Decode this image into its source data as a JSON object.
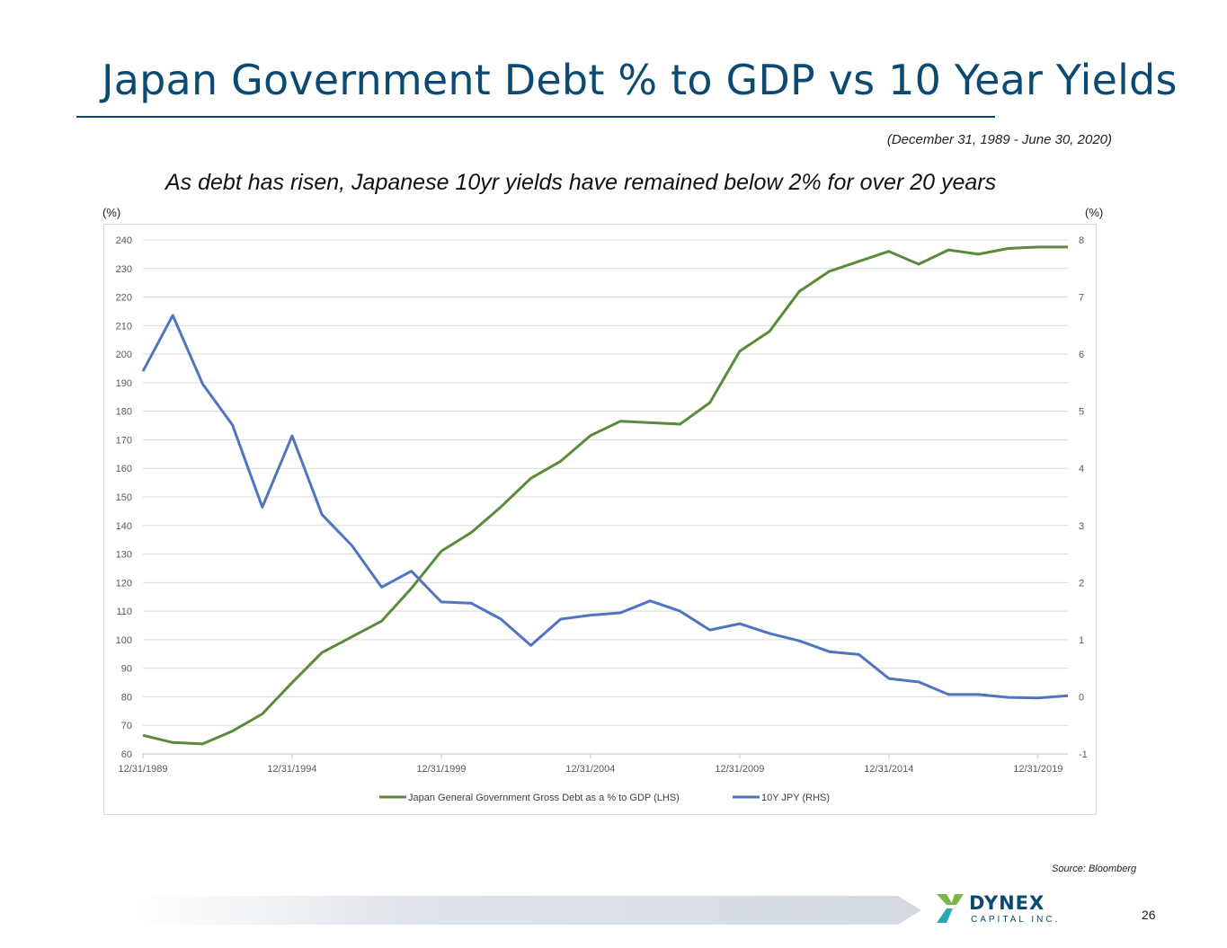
{
  "slide": {
    "title": "Japan Government Debt % to GDP vs 10 Year Yields",
    "date_range": "(December 31, 1989 - June 30, 2020)",
    "subtitle": "As debt has risen, Japanese 10yr yields have remained below 2% for over 20 years",
    "unit_left": "(%)",
    "unit_right": "(%)",
    "source": "Source: Bloomberg",
    "page_number": "26",
    "logo_word": "DYNEX",
    "logo_sub": "CAPITAL INC."
  },
  "colors": {
    "title": "#0c4a73",
    "debt_series": "#5a8a3a",
    "yield_series": "#4f74c0",
    "gridline": "#d9d9d9",
    "logo_green": "#7ab648",
    "logo_teal": "#2aa7b7"
  },
  "chart_data": {
    "type": "line",
    "x": [
      "1989",
      "1990",
      "1991",
      "1992",
      "1993",
      "1994",
      "1995",
      "1996",
      "1997",
      "1998",
      "1999",
      "2000",
      "2001",
      "2002",
      "2003",
      "2004",
      "2005",
      "2006",
      "2007",
      "2008",
      "2009",
      "2010",
      "2011",
      "2012",
      "2013",
      "2014",
      "2015",
      "2016",
      "2017",
      "2018",
      "2019",
      "2020"
    ],
    "x_tick_labels": [
      "12/31/1989",
      "12/31/1994",
      "12/31/1999",
      "12/31/2004",
      "12/31/2009",
      "12/31/2014",
      "12/31/2019"
    ],
    "y_left": {
      "min": 60,
      "max": 240,
      "step": 10
    },
    "y_right": {
      "min": -1,
      "max": 8,
      "step": 1
    },
    "series": [
      {
        "name": "Japan General Government Gross Debt as a % to GDP (LHS)",
        "axis": "left",
        "values": [
          66.5,
          64,
          63.5,
          68,
          74,
          85,
          95.5,
          101,
          106.5,
          118,
          131,
          137.5,
          146.5,
          156.5,
          162.5,
          171.5,
          176.5,
          176,
          175.5,
          183,
          201,
          208,
          222,
          229,
          232.5,
          236,
          231.5,
          236.5,
          235,
          237,
          237.5,
          237.5
        ]
      },
      {
        "name": "10Y JPY (RHS)",
        "axis": "right",
        "values": [
          5.7,
          6.68,
          5.48,
          4.76,
          3.32,
          4.57,
          3.19,
          2.65,
          1.92,
          2.2,
          1.66,
          1.64,
          1.36,
          0.9,
          1.36,
          1.43,
          1.47,
          1.68,
          1.5,
          1.17,
          1.28,
          1.11,
          0.98,
          0.79,
          0.74,
          0.32,
          0.26,
          0.04,
          0.04,
          -0.01,
          -0.02,
          0.02
        ]
      }
    ],
    "legend": "bottom",
    "grid": true
  }
}
